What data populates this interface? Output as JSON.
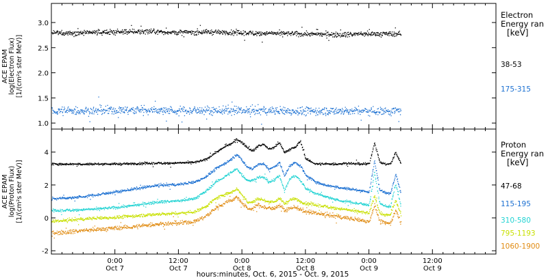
{
  "chart_data": [
    {
      "type": "scatter",
      "panel": "electron",
      "ylabel_lines": [
        "ACE EPAM",
        "log(Electron Flux)",
        "[1/(cm²s ster MeV)]"
      ],
      "ylim": [
        0.88,
        3.38
      ],
      "yticks": [
        "1.0",
        "1.5",
        "2.0",
        "2.5",
        "3.0"
      ],
      "yticks_values": [
        1.0,
        1.5,
        2.0,
        2.5,
        3.0
      ],
      "xlim_hours": [
        0,
        84
      ],
      "legend": {
        "title_lines": [
          "Electron",
          "Energy ran",
          "[keV]"
        ],
        "entries": [
          {
            "label": "38-53",
            "color": "#000000"
          },
          {
            "label": "175-315",
            "color": "#1a6fd1"
          }
        ]
      },
      "series": [
        {
          "name": "38-53",
          "color": "#000000",
          "end_hour": 66,
          "x_hours": [
            0,
            6,
            12,
            18,
            24,
            30,
            36,
            42,
            48,
            54,
            60,
            66
          ],
          "y": [
            2.8,
            2.8,
            2.82,
            2.83,
            2.81,
            2.82,
            2.8,
            2.79,
            2.78,
            2.77,
            2.78,
            2.78
          ],
          "spread": 0.035
        },
        {
          "name": "175-315",
          "color": "#1a6fd1",
          "end_hour": 66,
          "x_hours": [
            0,
            6,
            12,
            18,
            24,
            30,
            36,
            42,
            48,
            54,
            60,
            66
          ],
          "y": [
            1.25,
            1.25,
            1.26,
            1.27,
            1.25,
            1.26,
            1.25,
            1.25,
            1.24,
            1.25,
            1.25,
            1.25
          ],
          "spread": 0.06
        }
      ]
    },
    {
      "type": "scatter",
      "panel": "proton",
      "ylabel_lines": [
        "ACE EPAM",
        "log(Proton Flux)",
        "[1/(cm²s ster MeV)]"
      ],
      "ylim": [
        -2.2,
        5.4
      ],
      "yticks": [
        "-2",
        "0",
        "2",
        "4"
      ],
      "yticks_values": [
        -2,
        0,
        2,
        4
      ],
      "xlim_hours": [
        0,
        84
      ],
      "legend": {
        "title_lines": [
          "Proton",
          "Energy ran",
          "[keV]"
        ],
        "entries": [
          {
            "label": "47-68",
            "color": "#000000"
          },
          {
            "label": "115-195",
            "color": "#1a6fd1"
          },
          {
            "label": "310-580",
            "color": "#22d3d3"
          },
          {
            "label": "795-1193",
            "color": "#c8e000"
          },
          {
            "label": "1060-1900",
            "color": "#e08a10"
          }
        ]
      },
      "series": [
        {
          "name": "47-68",
          "color": "#000000",
          "end_hour": 66,
          "x_hours": [
            0,
            4,
            8,
            12,
            16,
            20,
            24,
            27,
            29,
            31,
            33,
            34,
            35,
            36,
            37,
            38,
            39,
            40,
            41,
            42,
            43,
            44,
            45,
            46,
            47,
            48,
            50,
            52,
            54,
            56,
            58,
            60,
            61,
            62,
            63,
            64,
            65,
            66
          ],
          "y": [
            3.3,
            3.3,
            3.3,
            3.3,
            3.32,
            3.35,
            3.36,
            3.4,
            3.55,
            4.0,
            4.4,
            4.55,
            4.8,
            4.6,
            4.3,
            4.1,
            4.4,
            4.5,
            4.2,
            4.3,
            4.6,
            4.0,
            4.2,
            4.3,
            4.7,
            3.6,
            3.3,
            3.3,
            3.3,
            3.35,
            3.3,
            3.3,
            4.6,
            3.4,
            3.3,
            3.3,
            4.0,
            3.3
          ],
          "spread": 0.05
        },
        {
          "name": "115-195",
          "color": "#1a6fd1",
          "end_hour": 66,
          "x_hours": [
            0,
            4,
            8,
            12,
            16,
            20,
            24,
            27,
            29,
            31,
            33,
            34,
            35,
            36,
            37,
            38,
            39,
            40,
            41,
            42,
            43,
            44,
            45,
            46,
            47,
            48,
            50,
            52,
            54,
            56,
            58,
            60,
            61,
            62,
            63,
            64,
            65,
            66
          ],
          "y": [
            1.2,
            1.25,
            1.4,
            1.6,
            1.8,
            2.0,
            2.05,
            2.2,
            2.5,
            3.0,
            3.4,
            3.6,
            3.9,
            3.5,
            3.1,
            3.0,
            3.3,
            3.3,
            3.0,
            3.1,
            3.4,
            2.6,
            3.2,
            3.4,
            3.2,
            2.6,
            2.2,
            2.0,
            1.9,
            1.8,
            1.7,
            1.6,
            3.5,
            1.7,
            1.55,
            1.5,
            2.7,
            1.5
          ],
          "spread": 0.06
        },
        {
          "name": "310-580",
          "color": "#22d3d3",
          "end_hour": 66,
          "x_hours": [
            0,
            4,
            8,
            12,
            16,
            20,
            24,
            27,
            29,
            31,
            33,
            34,
            35,
            36,
            37,
            38,
            39,
            40,
            41,
            42,
            43,
            44,
            45,
            46,
            47,
            48,
            50,
            52,
            54,
            56,
            58,
            60,
            61,
            62,
            63,
            64,
            65,
            66
          ],
          "y": [
            0.45,
            0.5,
            0.55,
            0.65,
            0.8,
            1.0,
            1.05,
            1.2,
            1.6,
            2.2,
            2.6,
            2.8,
            3.0,
            2.6,
            2.3,
            2.3,
            2.5,
            2.5,
            2.2,
            2.3,
            2.6,
            1.7,
            2.4,
            2.6,
            2.3,
            1.8,
            1.5,
            1.3,
            1.1,
            1.0,
            0.9,
            0.8,
            2.8,
            0.9,
            0.75,
            0.7,
            2.1,
            0.7
          ],
          "spread": 0.06
        },
        {
          "name": "795-1193",
          "color": "#c8e000",
          "end_hour": 66,
          "x_hours": [
            0,
            4,
            8,
            12,
            16,
            20,
            24,
            27,
            29,
            31,
            33,
            34,
            35,
            36,
            37,
            38,
            39,
            40,
            41,
            42,
            43,
            44,
            45,
            46,
            47,
            48,
            50,
            52,
            54,
            56,
            58,
            60,
            61,
            62,
            63,
            64,
            65,
            66
          ],
          "y": [
            -0.2,
            -0.1,
            0.0,
            0.05,
            0.15,
            0.25,
            0.3,
            0.4,
            0.7,
            1.2,
            1.5,
            1.6,
            1.8,
            1.4,
            1.0,
            1.0,
            1.2,
            1.1,
            1.0,
            1.0,
            1.2,
            0.9,
            1.1,
            1.2,
            1.0,
            0.9,
            0.8,
            0.7,
            0.6,
            0.5,
            0.4,
            0.3,
            1.4,
            0.3,
            0.2,
            0.2,
            1.1,
            0.2
          ],
          "spread": 0.07
        },
        {
          "name": "1060-1900",
          "color": "#e08a10",
          "end_hour": 66,
          "x_hours": [
            0,
            4,
            8,
            12,
            16,
            20,
            24,
            27,
            29,
            31,
            33,
            34,
            35,
            36,
            37,
            38,
            39,
            40,
            41,
            42,
            43,
            44,
            45,
            46,
            47,
            48,
            50,
            52,
            54,
            56,
            58,
            60,
            61,
            62,
            63,
            64,
            65,
            66
          ],
          "y": [
            -0.9,
            -0.8,
            -0.7,
            -0.6,
            -0.5,
            -0.35,
            -0.3,
            -0.2,
            0.1,
            0.6,
            1.0,
            1.1,
            1.3,
            0.9,
            0.6,
            0.6,
            0.8,
            0.7,
            0.6,
            0.6,
            0.8,
            0.5,
            0.6,
            0.7,
            0.5,
            0.4,
            0.3,
            0.2,
            0.1,
            0.0,
            -0.1,
            -0.2,
            0.8,
            -0.2,
            -0.3,
            -0.3,
            0.5,
            -0.3
          ],
          "spread": 0.09
        }
      ]
    }
  ],
  "x_axis": {
    "ticks": [
      {
        "hours": 12,
        "time": "0:00",
        "date": "Oct 7"
      },
      {
        "hours": 24,
        "time": "12:00",
        "date": "Oct 7"
      },
      {
        "hours": 36,
        "time": "0:00",
        "date": "Oct 8"
      },
      {
        "hours": 48,
        "time": "12:00",
        "date": "Oct 8"
      },
      {
        "hours": 60,
        "time": "0:00",
        "date": "Oct 9"
      },
      {
        "hours": 72,
        "time": "12:00",
        "date": "Oct 9"
      }
    ],
    "minor_step_hours": 2,
    "xlabel": "hours:minutes, Oct.  6, 2015 - Oct.  9, 2015"
  }
}
